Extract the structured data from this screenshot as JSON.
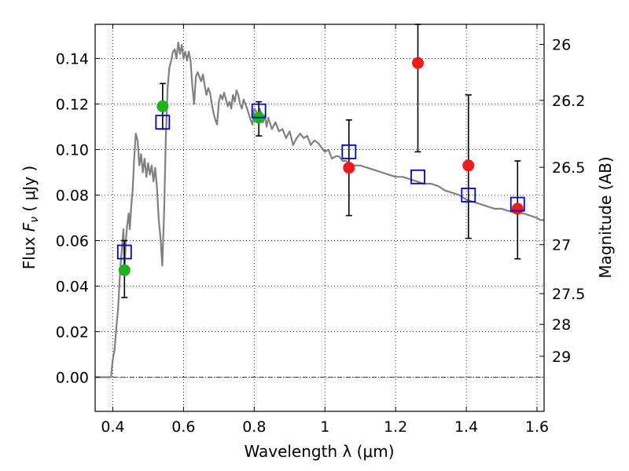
{
  "chart_data": {
    "type": "scatter",
    "xlabel": "Wavelength  λ (μm)",
    "ylabel_parts": [
      "Flux ",
      "F",
      "ν",
      "  ( μJy )"
    ],
    "y2label": "Magnitude (AB)",
    "xlim": [
      0.35,
      1.62
    ],
    "ylim": [
      -0.015,
      0.155
    ],
    "x_ticks": [
      0.4,
      0.6,
      0.8,
      1.0,
      1.2,
      1.4,
      1.6
    ],
    "x_tick_labels": [
      "0.4",
      "0.6",
      "0.8",
      "1",
      "1.2",
      "1.4",
      "1.6"
    ],
    "y_ticks": [
      0.0,
      0.02,
      0.04,
      0.06,
      0.08,
      0.1,
      0.12,
      0.14
    ],
    "y_tick_labels": [
      "0.00",
      "0.02",
      "0.04",
      "0.06",
      "0.08",
      "0.10",
      "0.12",
      "0.14"
    ],
    "y2_ticks": [
      {
        "label": "26",
        "flux": 0.1462
      },
      {
        "label": "26.2",
        "flux": 0.1216
      },
      {
        "label": "26.5",
        "flux": 0.0922
      },
      {
        "label": "27",
        "flux": 0.0582
      },
      {
        "label": "27.5",
        "flux": 0.0367
      },
      {
        "label": "28",
        "flux": 0.0232
      },
      {
        "label": "29",
        "flux": 0.0092
      }
    ],
    "grid": true,
    "colors": {
      "model": "#808080",
      "green_points": "#1db31d",
      "red_points": "#f01a1a",
      "model_squares": "#0000cc",
      "errorbars": "#000000"
    },
    "series": [
      {
        "kind": "model_spectrum",
        "points": [
          [
            0.35,
            0.0
          ],
          [
            0.395,
            0.0
          ],
          [
            0.4,
            0.008
          ],
          [
            0.405,
            0.012
          ],
          [
            0.41,
            0.022
          ],
          [
            0.415,
            0.03
          ],
          [
            0.42,
            0.045
          ],
          [
            0.425,
            0.055
          ],
          [
            0.43,
            0.065
          ],
          [
            0.433,
            0.047
          ],
          [
            0.437,
            0.06
          ],
          [
            0.44,
            0.066
          ],
          [
            0.445,
            0.072
          ],
          [
            0.448,
            0.065
          ],
          [
            0.452,
            0.075
          ],
          [
            0.456,
            0.082
          ],
          [
            0.46,
            0.095
          ],
          [
            0.465,
            0.107
          ],
          [
            0.47,
            0.104
          ],
          [
            0.475,
            0.093
          ],
          [
            0.48,
            0.098
          ],
          [
            0.485,
            0.09
          ],
          [
            0.49,
            0.096
          ],
          [
            0.495,
            0.088
          ],
          [
            0.5,
            0.094
          ],
          [
            0.505,
            0.089
          ],
          [
            0.51,
            0.093
          ],
          [
            0.515,
            0.086
          ],
          [
            0.52,
            0.092
          ],
          [
            0.525,
            0.083
          ],
          [
            0.53,
            0.069
          ],
          [
            0.535,
            0.061
          ],
          [
            0.54,
            0.049
          ],
          [
            0.545,
            0.072
          ],
          [
            0.55,
            0.105
          ],
          [
            0.555,
            0.127
          ],
          [
            0.56,
            0.136
          ],
          [
            0.565,
            0.139
          ],
          [
            0.57,
            0.143
          ],
          [
            0.575,
            0.144
          ],
          [
            0.58,
            0.14
          ],
          [
            0.585,
            0.147
          ],
          [
            0.59,
            0.142
          ],
          [
            0.595,
            0.146
          ],
          [
            0.6,
            0.14
          ],
          [
            0.605,
            0.143
          ],
          [
            0.61,
            0.139
          ],
          [
            0.615,
            0.143
          ],
          [
            0.62,
            0.139
          ],
          [
            0.625,
            0.128
          ],
          [
            0.63,
            0.12
          ],
          [
            0.635,
            0.132
          ],
          [
            0.64,
            0.134
          ],
          [
            0.645,
            0.132
          ],
          [
            0.65,
            0.13
          ],
          [
            0.655,
            0.133
          ],
          [
            0.66,
            0.128
          ],
          [
            0.665,
            0.124
          ],
          [
            0.67,
            0.127
          ],
          [
            0.675,
            0.125
          ],
          [
            0.68,
            0.12
          ],
          [
            0.685,
            0.116
          ],
          [
            0.69,
            0.113
          ],
          [
            0.695,
            0.111
          ],
          [
            0.7,
            0.121
          ],
          [
            0.705,
            0.124
          ],
          [
            0.71,
            0.122
          ],
          [
            0.715,
            0.125
          ],
          [
            0.72,
            0.122
          ],
          [
            0.725,
            0.119
          ],
          [
            0.73,
            0.121
          ],
          [
            0.735,
            0.118
          ],
          [
            0.74,
            0.124
          ],
          [
            0.745,
            0.121
          ],
          [
            0.75,
            0.126
          ],
          [
            0.755,
            0.124
          ],
          [
            0.76,
            0.12
          ],
          [
            0.765,
            0.118
          ],
          [
            0.77,
            0.122
          ],
          [
            0.78,
            0.118
          ],
          [
            0.79,
            0.113
          ],
          [
            0.795,
            0.111
          ],
          [
            0.8,
            0.118
          ],
          [
            0.805,
            0.117
          ],
          [
            0.81,
            0.114
          ],
          [
            0.815,
            0.118
          ],
          [
            0.82,
            0.116
          ],
          [
            0.825,
            0.112
          ],
          [
            0.83,
            0.115
          ],
          [
            0.835,
            0.11
          ],
          [
            0.84,
            0.114
          ],
          [
            0.85,
            0.109
          ],
          [
            0.86,
            0.112
          ],
          [
            0.87,
            0.108
          ],
          [
            0.88,
            0.109
          ],
          [
            0.89,
            0.105
          ],
          [
            0.9,
            0.108
          ],
          [
            0.91,
            0.102
          ],
          [
            0.92,
            0.105
          ],
          [
            0.93,
            0.107
          ],
          [
            0.94,
            0.105
          ],
          [
            0.95,
            0.106
          ],
          [
            0.96,
            0.102
          ],
          [
            0.97,
            0.104
          ],
          [
            0.98,
            0.103
          ],
          [
            0.99,
            0.101
          ],
          [
            1.0,
            0.099
          ],
          [
            1.01,
            0.1
          ],
          [
            1.02,
            0.096
          ],
          [
            1.03,
            0.097
          ],
          [
            1.04,
            0.097
          ],
          [
            1.05,
            0.095
          ],
          [
            1.06,
            0.095
          ],
          [
            1.07,
            0.094
          ],
          [
            1.08,
            0.093
          ],
          [
            1.1,
            0.093
          ],
          [
            1.12,
            0.092
          ],
          [
            1.14,
            0.091
          ],
          [
            1.16,
            0.09
          ],
          [
            1.18,
            0.089
          ],
          [
            1.2,
            0.088
          ],
          [
            1.22,
            0.088
          ],
          [
            1.24,
            0.087
          ],
          [
            1.26,
            0.086
          ],
          [
            1.28,
            0.085
          ],
          [
            1.3,
            0.085
          ],
          [
            1.32,
            0.084
          ],
          [
            1.34,
            0.082
          ],
          [
            1.36,
            0.081
          ],
          [
            1.38,
            0.08
          ],
          [
            1.4,
            0.078
          ],
          [
            1.42,
            0.077
          ],
          [
            1.44,
            0.076
          ],
          [
            1.46,
            0.075
          ],
          [
            1.48,
            0.074
          ],
          [
            1.5,
            0.074
          ],
          [
            1.52,
            0.073
          ],
          [
            1.54,
            0.072
          ],
          [
            1.56,
            0.072
          ],
          [
            1.58,
            0.071
          ],
          [
            1.6,
            0.07
          ],
          [
            1.61,
            0.069
          ],
          [
            1.62,
            0.069
          ]
        ]
      },
      {
        "kind": "green_points",
        "points": [
          {
            "x": 0.433,
            "y": 0.047,
            "yerr_lo": 0.035,
            "yerr_hi": 0.06
          },
          {
            "x": 0.541,
            "y": 0.119,
            "yerr_lo": 0.109,
            "yerr_hi": 0.129
          },
          {
            "x": 0.813,
            "y": 0.114,
            "yerr_lo": 0.106,
            "yerr_hi": 0.121
          }
        ]
      },
      {
        "kind": "red_points",
        "points": [
          {
            "x": 1.068,
            "y": 0.092,
            "yerr_lo": 0.071,
            "yerr_hi": 0.113
          },
          {
            "x": 1.263,
            "y": 0.138,
            "yerr_lo": 0.099,
            "yerr_hi": 0.155
          },
          {
            "x": 1.406,
            "y": 0.093,
            "yerr_lo": 0.061,
            "yerr_hi": 0.124
          },
          {
            "x": 1.545,
            "y": 0.074,
            "yerr_lo": 0.052,
            "yerr_hi": 0.095
          }
        ]
      },
      {
        "kind": "model_squares",
        "points": [
          {
            "x": 0.433,
            "y": 0.055
          },
          {
            "x": 0.541,
            "y": 0.112
          },
          {
            "x": 0.813,
            "y": 0.117
          },
          {
            "x": 1.068,
            "y": 0.099
          },
          {
            "x": 1.263,
            "y": 0.088
          },
          {
            "x": 1.406,
            "y": 0.08
          },
          {
            "x": 1.545,
            "y": 0.076
          }
        ]
      }
    ]
  }
}
